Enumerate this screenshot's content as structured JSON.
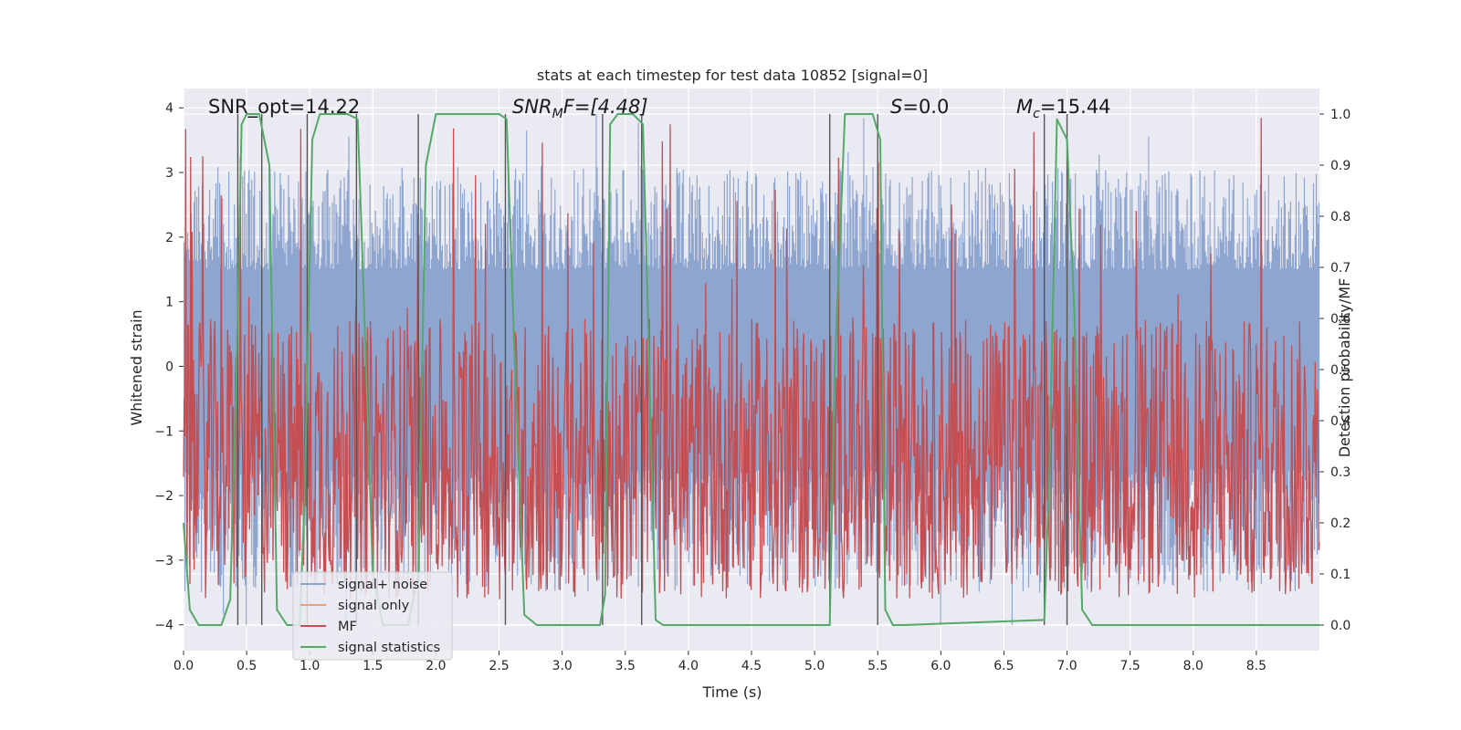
{
  "chart_data": {
    "type": "line",
    "title": "stats at each timestep for test data 10852 [signal=0]",
    "xlabel": "Time (s)",
    "ylabel": "Whitened strain",
    "y2label": "Detection probability/MF",
    "xlim": [
      0.0,
      9.0
    ],
    "ylim": [
      -4.4,
      4.3
    ],
    "y2lim": [
      -0.05,
      1.05
    ],
    "xticks": [
      "0.0",
      "0.5",
      "1.0",
      "1.5",
      "2.0",
      "2.5",
      "3.0",
      "3.5",
      "4.0",
      "4.5",
      "5.0",
      "5.5",
      "6.0",
      "6.5",
      "7.0",
      "7.5",
      "8.0",
      "8.5"
    ],
    "yticks": [
      "4",
      "3",
      "2",
      "1",
      "0",
      "−1",
      "−2",
      "−3",
      "−4"
    ],
    "y2ticks": [
      "1.0",
      "0.9",
      "0.8",
      "0.7",
      "0.6",
      "0.5",
      "0.4",
      "0.3",
      "0.2",
      "0.1",
      "0.0"
    ],
    "annotations": {
      "snr_opt": "SNR_opt=14.22",
      "snr_mf_base": "SNR",
      "snr_mf_sub": "M",
      "snr_mf_rest": "F=[4.48]",
      "s_label": "S",
      "s_value": "=0.0",
      "mc_label": "M",
      "mc_sub": "c",
      "mc_value": "=15.44"
    },
    "legend": {
      "position": "lower-left",
      "entries": [
        {
          "label": "signal+ noise",
          "color": "#8ea5cf"
        },
        {
          "label": "signal only",
          "color": "#e8a080"
        },
        {
          "label": "MF",
          "color": "#c44e52"
        },
        {
          "label": "signal statistics",
          "color": "#55a868"
        }
      ]
    },
    "colors": {
      "noise": "#8ea5cf",
      "mf": "#c44e52",
      "stats": "#55a868",
      "vlines": "#555555",
      "grid": "#ffffff",
      "background": "#eaeaf2"
    },
    "series_noise": {
      "name": "signal+ noise",
      "x_range": [
        0.0,
        9.0
      ],
      "envelope_min": -4.0,
      "envelope_max": 3.9,
      "typical_band": [
        -1.6,
        1.5
      ]
    },
    "series_mf": {
      "name": "MF",
      "x_range": [
        0.0,
        9.0
      ],
      "typical_range": [
        0.0,
        0.7
      ],
      "max": 1.0
    },
    "series_stats": {
      "name": "signal statistics",
      "x": [
        0.0,
        0.05,
        0.12,
        0.2,
        0.3,
        0.37,
        0.42,
        0.46,
        0.5,
        0.6,
        0.68,
        0.74,
        0.82,
        0.92,
        0.96,
        1.02,
        1.08,
        1.3,
        1.38,
        1.42,
        1.5,
        1.58,
        1.78,
        1.86,
        1.92,
        2.0,
        2.5,
        2.56,
        2.62,
        2.7,
        2.8,
        3.3,
        3.34,
        3.38,
        3.44,
        3.56,
        3.64,
        3.68,
        3.74,
        3.8,
        5.12,
        5.16,
        5.24,
        5.46,
        5.52,
        5.56,
        5.62,
        5.7,
        6.82,
        6.86,
        6.92,
        7.0,
        7.06,
        7.12,
        7.2,
        9.0
      ],
      "y": [
        0.2,
        0.03,
        0.0,
        0.0,
        0.0,
        0.05,
        0.5,
        0.98,
        1.0,
        1.0,
        0.9,
        0.03,
        0.0,
        0.0,
        0.25,
        0.95,
        1.0,
        1.0,
        0.99,
        0.7,
        0.1,
        0.0,
        0.0,
        0.1,
        0.9,
        1.0,
        1.0,
        0.99,
        0.55,
        0.02,
        0.0,
        0.0,
        0.06,
        0.98,
        1.0,
        1.0,
        0.98,
        0.6,
        0.01,
        0.0,
        0.0,
        0.5,
        1.0,
        1.0,
        0.95,
        0.03,
        0.0,
        0.0,
        0.01,
        0.3,
        0.99,
        0.95,
        0.6,
        0.03,
        0.0,
        0.0
      ]
    },
    "vertical_lines_x": [
      0.43,
      0.62,
      0.98,
      1.37,
      1.86,
      2.55,
      3.32,
      3.63,
      5.12,
      5.5,
      6.82,
      7.0
    ]
  }
}
